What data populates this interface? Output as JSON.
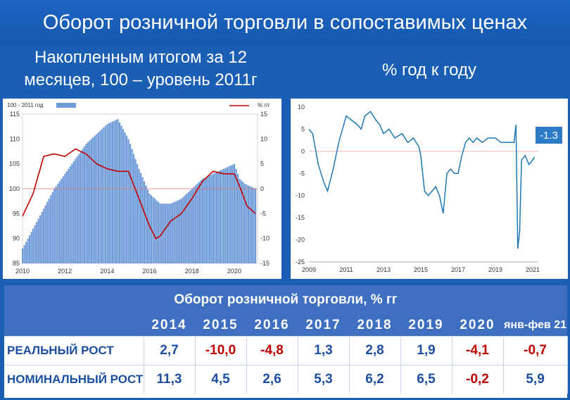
{
  "title": "Оборот розничной торговли в сопоставимых ценах",
  "subtitle_left": "Накопленным итогом за 12 месяцев, 100 – уровень 2011г",
  "subtitle_right": "% год к году",
  "chart_data": [
    {
      "type": "bar",
      "legend": {
        "bars": "100 - 2011 год",
        "line": "%  г/г"
      },
      "x_ticks": [
        "2010",
        "2012",
        "2014",
        "2016",
        "2018",
        "2020"
      ],
      "y_left": {
        "ticks": [
          85,
          90,
          95,
          100,
          105,
          110,
          115
        ],
        "ylim": [
          85,
          115
        ]
      },
      "y_right": {
        "ticks": [
          -15,
          -10,
          -5,
          0,
          5,
          10,
          15
        ],
        "ylim": [
          -15,
          15
        ]
      },
      "bar_series": {
        "name": "100 - 2011 год",
        "x": [
          2010.0,
          2010.5,
          2011.0,
          2011.5,
          2012.0,
          2012.5,
          2013.0,
          2013.5,
          2014.0,
          2014.5,
          2015.0,
          2015.5,
          2016.0,
          2016.5,
          2017.0,
          2017.5,
          2018.0,
          2018.5,
          2019.0,
          2019.5,
          2020.0,
          2020.25,
          2020.5,
          2021.0
        ],
        "y": [
          88,
          92,
          96,
          100,
          103,
          106,
          109,
          111,
          113,
          114,
          110,
          104,
          99,
          97,
          97,
          98,
          100,
          102,
          103,
          104,
          105,
          102,
          101,
          100
        ]
      },
      "line_series": {
        "name": "%  г/г",
        "x": [
          2010.0,
          2010.5,
          2011.0,
          2011.5,
          2012.0,
          2012.5,
          2013.0,
          2013.5,
          2014.0,
          2014.5,
          2015.0,
          2015.5,
          2016.0,
          2016.3,
          2016.5,
          2017.0,
          2017.5,
          2018.0,
          2018.5,
          2019.0,
          2019.5,
          2020.0,
          2020.3,
          2020.6,
          2021.0
        ],
        "y": [
          -5.5,
          -1,
          6.5,
          7,
          6.5,
          8,
          7,
          5,
          4,
          3.5,
          3.5,
          -2,
          -7.5,
          -10,
          -9.5,
          -6.5,
          -5,
          -2,
          1.5,
          3.5,
          3,
          3,
          0,
          -3.5,
          -5
        ]
      }
    },
    {
      "type": "line",
      "x_ticks": [
        "2009",
        "2011",
        "2013",
        "2015",
        "2017",
        "2019",
        "2021"
      ],
      "y_ticks": [
        10,
        5,
        0,
        -5,
        -10,
        -15,
        -20,
        -25
      ],
      "ylim": [
        -25,
        10
      ],
      "last_value_label": "-1.3",
      "series": [
        {
          "x": [
            2009.0,
            2009.2,
            2009.5,
            2009.8,
            2010.0,
            2010.3,
            2010.6,
            2010.8,
            2011.0,
            2011.3,
            2011.6,
            2011.8,
            2012.0,
            2012.3,
            2012.6,
            2012.8,
            2013.0,
            2013.3,
            2013.6,
            2014.0,
            2014.3,
            2014.6,
            2014.9,
            2015.0,
            2015.2,
            2015.4,
            2015.6,
            2015.8,
            2016.0,
            2016.2,
            2016.4,
            2016.6,
            2016.8,
            2017.0,
            2017.2,
            2017.4,
            2017.6,
            2017.8,
            2018.0,
            2018.3,
            2018.6,
            2019.0,
            2019.3,
            2019.6,
            2019.9,
            2020.0,
            2020.1,
            2020.2,
            2020.3,
            2020.4,
            2020.6,
            2020.8,
            2021.0,
            2021.1
          ],
          "y": [
            5,
            4,
            -3,
            -7,
            -9,
            -4,
            2,
            5,
            8,
            7,
            6,
            5,
            8,
            9,
            7,
            6,
            4,
            5,
            3,
            4,
            2,
            3,
            1,
            -1,
            -9,
            -10,
            -9,
            -8,
            -10,
            -14,
            -5,
            -4,
            -5,
            -5,
            -1,
            2,
            3,
            2,
            3,
            2,
            3,
            3,
            2,
            2,
            2,
            2,
            6,
            -22,
            -18,
            -2,
            -1,
            -3,
            -2,
            -1.3
          ]
        }
      ]
    }
  ],
  "table": {
    "header": "Оборот розничной торговли, % гг",
    "years": [
      "2014",
      "2015",
      "2016",
      "2017",
      "2018",
      "2019",
      "2020",
      "янв-фев 21"
    ],
    "rows": [
      {
        "label": "РЕАЛЬНЫЙ РОСТ",
        "values": [
          "2,7",
          "-10,0",
          "-4,8",
          "1,3",
          "2,8",
          "1,9",
          "-4,1",
          "-0,7"
        ]
      },
      {
        "label": "НОМИНАЛЬНЫЙ РОСТ",
        "values": [
          "11,3",
          "4,5",
          "2,6",
          "5,3",
          "6,2",
          "6,5",
          "-0,2",
          "5,9"
        ]
      }
    ]
  }
}
